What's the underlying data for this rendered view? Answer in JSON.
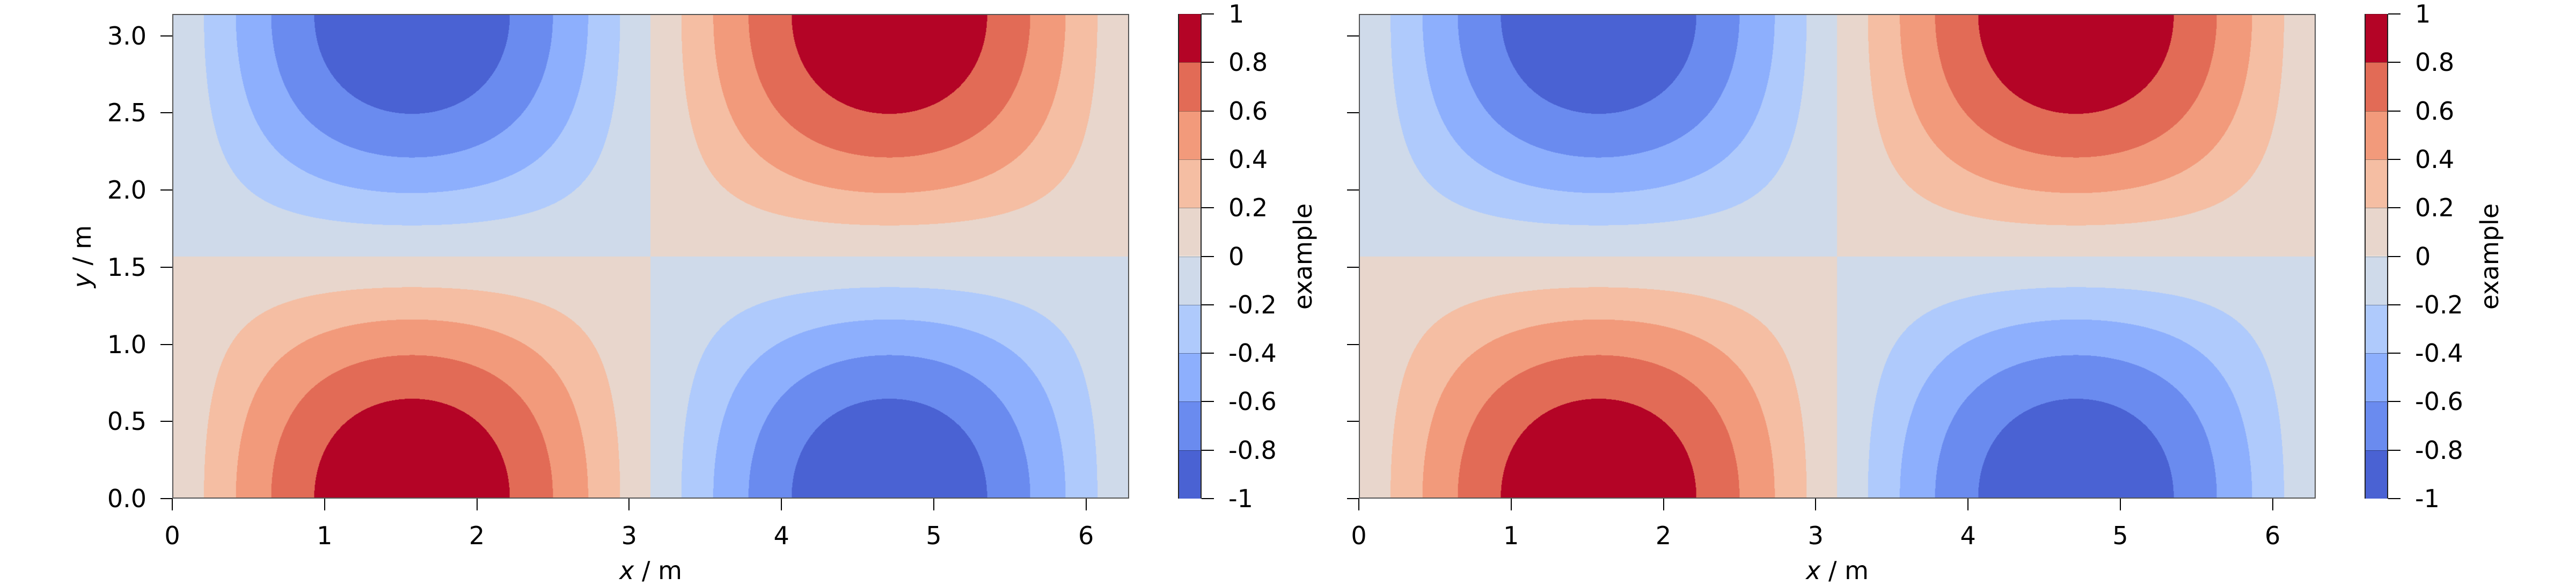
{
  "chart_data": [
    {
      "type": "contour",
      "z_expression": "sin(x)*cos(y)",
      "xlabel_var": "x",
      "xlabel_unit": " / m",
      "ylabel_var": "y",
      "ylabel_unit": " / m",
      "xlim": [
        0,
        6.2832
      ],
      "ylim": [
        0,
        3.1416
      ],
      "xticks": [
        "0",
        "1",
        "2",
        "3",
        "4",
        "5",
        "6"
      ],
      "yticks": [
        "0.0",
        "0.5",
        "1.0",
        "1.5",
        "2.0",
        "2.5",
        "3.0"
      ],
      "show_ytick_labels": true,
      "colorbar": {
        "label": "example",
        "levels": [
          -1,
          -0.8,
          -0.6,
          -0.4,
          -0.2,
          0,
          0.2,
          0.4,
          0.6,
          0.8,
          1
        ],
        "tick_labels": [
          "-1",
          "-0.8",
          "-0.6",
          "-0.4",
          "-0.2",
          "0",
          "0.2",
          "0.4",
          "0.6",
          "0.8",
          "1"
        ],
        "colors": [
          "#4a62d3",
          "#6a8bef",
          "#8daffd",
          "#afcafc",
          "#cfdaea",
          "#e8d6cc",
          "#f5bea3",
          "#f29a7b",
          "#e26b56",
          "#b40426"
        ]
      }
    },
    {
      "type": "contour",
      "z_expression": "sin(x)*cos(y)",
      "xlabel_var": "x",
      "xlabel_unit": " / m",
      "xlim": [
        0,
        6.2832
      ],
      "ylim": [
        0,
        3.1416
      ],
      "xticks": [
        "0",
        "1",
        "2",
        "3",
        "4",
        "5",
        "6"
      ],
      "yticks": [],
      "show_ytick_labels": false,
      "colorbar": {
        "label": "example",
        "levels": [
          -1,
          -0.8,
          -0.6,
          -0.4,
          -0.2,
          0,
          0.2,
          0.4,
          0.6,
          0.8,
          1
        ],
        "tick_labels": [
          "-1",
          "-0.8",
          "-0.6",
          "-0.4",
          "-0.2",
          "0",
          "0.2",
          "0.4",
          "0.6",
          "0.8",
          "1"
        ],
        "colors": [
          "#4a62d3",
          "#6a8bef",
          "#8daffd",
          "#afcafc",
          "#cfdaea",
          "#e8d6cc",
          "#f5bea3",
          "#f29a7b",
          "#e26b56",
          "#b40426"
        ]
      }
    }
  ]
}
